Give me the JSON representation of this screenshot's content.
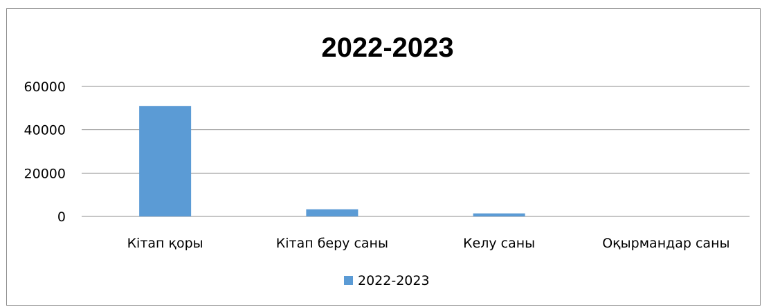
{
  "chart_data": {
    "type": "bar",
    "title": "2022-2023",
    "categories": [
      "Кітап қоры",
      "Кітап беру саны",
      "Келу саны",
      "Оқырмандар саны"
    ],
    "series": [
      {
        "name": "2022-2023",
        "values": [
          51000,
          3300,
          1400,
          0
        ],
        "color": "#5b9bd5"
      }
    ],
    "ylim": [
      0,
      60000
    ],
    "yticks": [
      "0",
      "20000",
      "40000",
      "60000"
    ],
    "xlabel": "",
    "ylabel": "",
    "grid": true,
    "legend": "bottom"
  }
}
